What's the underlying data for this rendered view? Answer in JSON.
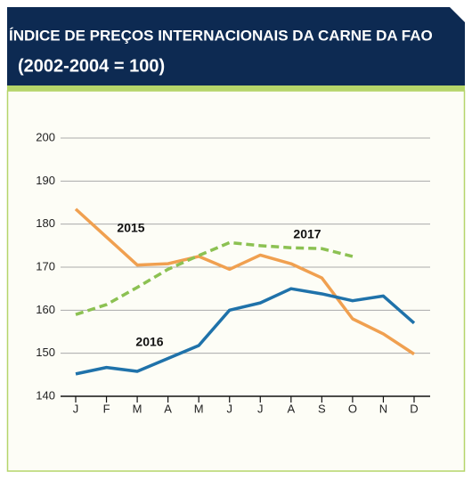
{
  "chart_data": {
    "type": "line",
    "title": "ÍNDICE DE PREÇOS INTERNACIONAIS DA CARNE DA FAO",
    "subtitle": "(2002-2004 = 100)",
    "categories": [
      "J",
      "F",
      "M",
      "A",
      "M",
      "J",
      "J",
      "A",
      "S",
      "O",
      "N",
      "D"
    ],
    "series": [
      {
        "name": "2015",
        "color": "#f0a050",
        "dashed": false,
        "values": [
          183.5,
          177,
          170.5,
          170.8,
          172.5,
          169.5,
          172.8,
          170.8,
          167.5,
          158,
          154.5,
          149.8
        ]
      },
      {
        "name": "2016",
        "color": "#1f72aa",
        "dashed": false,
        "values": [
          145.2,
          146.7,
          145.8,
          148.8,
          151.8,
          160,
          161.7,
          165,
          163.8,
          162.2,
          163.3,
          157
        ]
      },
      {
        "name": "2017",
        "color": "#8cc152",
        "dashed": true,
        "values": [
          159,
          161.3,
          165.3,
          169.5,
          172.7,
          175.7,
          175,
          174.5,
          174.3,
          172.5,
          null,
          null
        ]
      }
    ],
    "ylim": [
      140,
      200
    ],
    "yticks": [
      140,
      150,
      160,
      170,
      180,
      190,
      200
    ],
    "grid": true
  }
}
